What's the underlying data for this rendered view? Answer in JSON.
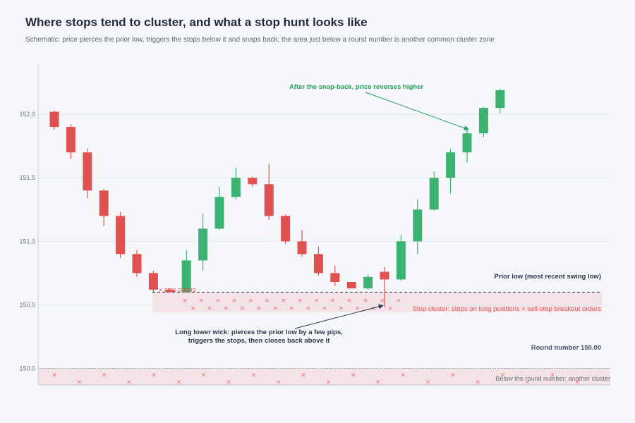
{
  "header": {
    "title": "Where stops tend to cluster, and what a stop hunt looks like",
    "subtitle": "Schematic: price pierces the prior low, triggers the stops below it and snaps back; the area just below a round number is another common cluster zone"
  },
  "chart_data": {
    "type": "candlestick",
    "xlabel": "",
    "ylabel": "",
    "ylim": [
      149.87,
      152.4
    ],
    "y_ticks": [
      "150.0",
      "150.5",
      "151.0",
      "151.5",
      "152.0"
    ],
    "y_tick_values": [
      150.0,
      150.5,
      151.0,
      151.5,
      152.0
    ],
    "grid": true,
    "candles": [
      {
        "o": 152.02,
        "h": 152.03,
        "l": 151.88,
        "c": 151.9
      },
      {
        "o": 151.9,
        "h": 151.92,
        "l": 151.65,
        "c": 151.7
      },
      {
        "o": 151.7,
        "h": 151.73,
        "l": 151.34,
        "c": 151.4
      },
      {
        "o": 151.4,
        "h": 151.41,
        "l": 151.12,
        "c": 151.2
      },
      {
        "o": 151.2,
        "h": 151.23,
        "l": 150.87,
        "c": 150.9
      },
      {
        "o": 150.9,
        "h": 150.93,
        "l": 150.72,
        "c": 150.75
      },
      {
        "o": 150.75,
        "h": 150.77,
        "l": 150.59,
        "c": 150.62
      },
      {
        "o": 150.62,
        "h": 150.63,
        "l": 150.6,
        "c": 150.6
      },
      {
        "o": 150.6,
        "h": 150.93,
        "l": 150.59,
        "c": 150.85
      },
      {
        "o": 150.85,
        "h": 151.22,
        "l": 150.77,
        "c": 151.1
      },
      {
        "o": 151.1,
        "h": 151.43,
        "l": 151.09,
        "c": 151.35
      },
      {
        "o": 151.35,
        "h": 151.58,
        "l": 151.33,
        "c": 151.5
      },
      {
        "o": 151.5,
        "h": 151.51,
        "l": 151.43,
        "c": 151.45
      },
      {
        "o": 151.45,
        "h": 151.61,
        "l": 151.17,
        "c": 151.2
      },
      {
        "o": 151.2,
        "h": 151.21,
        "l": 150.98,
        "c": 151.0
      },
      {
        "o": 151.0,
        "h": 151.09,
        "l": 150.88,
        "c": 150.9
      },
      {
        "o": 150.9,
        "h": 150.96,
        "l": 150.73,
        "c": 150.75
      },
      {
        "o": 150.75,
        "h": 150.81,
        "l": 150.65,
        "c": 150.68
      },
      {
        "o": 150.68,
        "h": 150.68,
        "l": 150.63,
        "c": 150.63
      },
      {
        "o": 150.63,
        "h": 150.74,
        "l": 150.62,
        "c": 150.72
      },
      {
        "o": 150.76,
        "h": 150.8,
        "l": 150.48,
        "c": 150.7
      },
      {
        "o": 150.7,
        "h": 151.05,
        "l": 150.69,
        "c": 151.0
      },
      {
        "o": 151.0,
        "h": 151.33,
        "l": 150.9,
        "c": 151.25
      },
      {
        "o": 151.25,
        "h": 151.55,
        "l": 151.24,
        "c": 151.5
      },
      {
        "o": 151.5,
        "h": 151.73,
        "l": 151.38,
        "c": 151.7
      },
      {
        "o": 151.7,
        "h": 151.9,
        "l": 151.62,
        "c": 151.85
      },
      {
        "o": 151.85,
        "h": 152.06,
        "l": 151.82,
        "c": 152.05
      },
      {
        "o": 152.05,
        "h": 152.2,
        "l": 152.01,
        "c": 152.19
      }
    ],
    "levels": {
      "prior_low": 150.6,
      "round_number": 150.0
    },
    "annotations": {
      "prior_low": "Prior low (most recent swing low)",
      "stop_cluster": "Stop cluster: stops on long positions + sell-stop breakout orders",
      "stop_orders_key": "× stop orders",
      "round_number": "Round number 150.00",
      "round_cluster": "Below the round number: another cluster",
      "wick_line1": "Long lower wick: pierces the prior low by a few pips,",
      "wick_line2": "triggers the stops, then closes back above it",
      "reversal": "After the snap-back, price reverses higher"
    },
    "colors": {
      "up": "#3cb371",
      "down": "#e05252",
      "zone": "#f4e3e6",
      "stop_marker": "#e57373",
      "axis_text": "#6b7280",
      "dark_text": "#2d3748",
      "green_text": "#27a05a",
      "red_text": "#e05252"
    }
  }
}
